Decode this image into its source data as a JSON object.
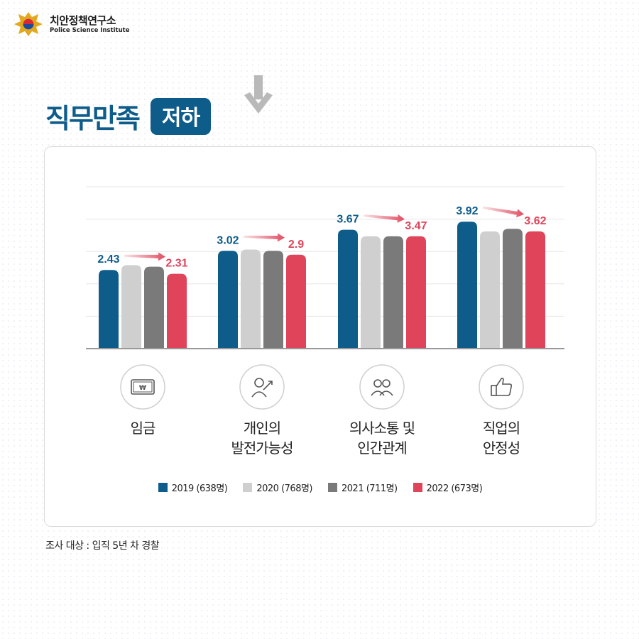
{
  "header": {
    "org_name_ko": "치안정책연구소",
    "org_name_en": "Police Science Institute"
  },
  "title": {
    "text": "직무만족",
    "badge": "저하"
  },
  "icons": {
    "emblem": "police-emblem-icon",
    "trend": "arrow-down-icon"
  },
  "colors": {
    "brand": "#0d5c8a",
    "y2019": "#0d5c8a",
    "y2020": "#cfcfcf",
    "y2021": "#7a7a7a",
    "y2022": "#e0445a",
    "highlight": "#e0445a"
  },
  "chart_data": {
    "type": "bar",
    "categories": [
      "임금",
      "개인의\n발전가능성",
      "의사소통 및\n인간관계",
      "직업의\n안정성"
    ],
    "category_icons": [
      "money-icon",
      "growth-icon",
      "people-icon",
      "thumbs-up-icon"
    ],
    "series": [
      {
        "name": "2019 (638명)",
        "values": [
          2.43,
          3.02,
          3.67,
          3.92
        ]
      },
      {
        "name": "2020 (768명)",
        "values": [
          2.58,
          3.06,
          3.47,
          3.62
        ]
      },
      {
        "name": "2021 (711명)",
        "values": [
          2.53,
          3.02,
          3.47,
          3.7
        ]
      },
      {
        "name": "2022 (673명)",
        "values": [
          2.31,
          2.9,
          3.47,
          3.62
        ]
      }
    ],
    "labeled_series": [
      0,
      3
    ],
    "data_labels": [
      [
        "2.43",
        "3.02",
        "3.67",
        "3.92"
      ],
      [
        "2.31",
        "2.9",
        "3.47",
        "3.62"
      ]
    ],
    "ylim": [
      0,
      5
    ],
    "grid": true,
    "legend_position": "bottom"
  },
  "footnote": "조사 대상 : 입직 5년 차 경찰"
}
